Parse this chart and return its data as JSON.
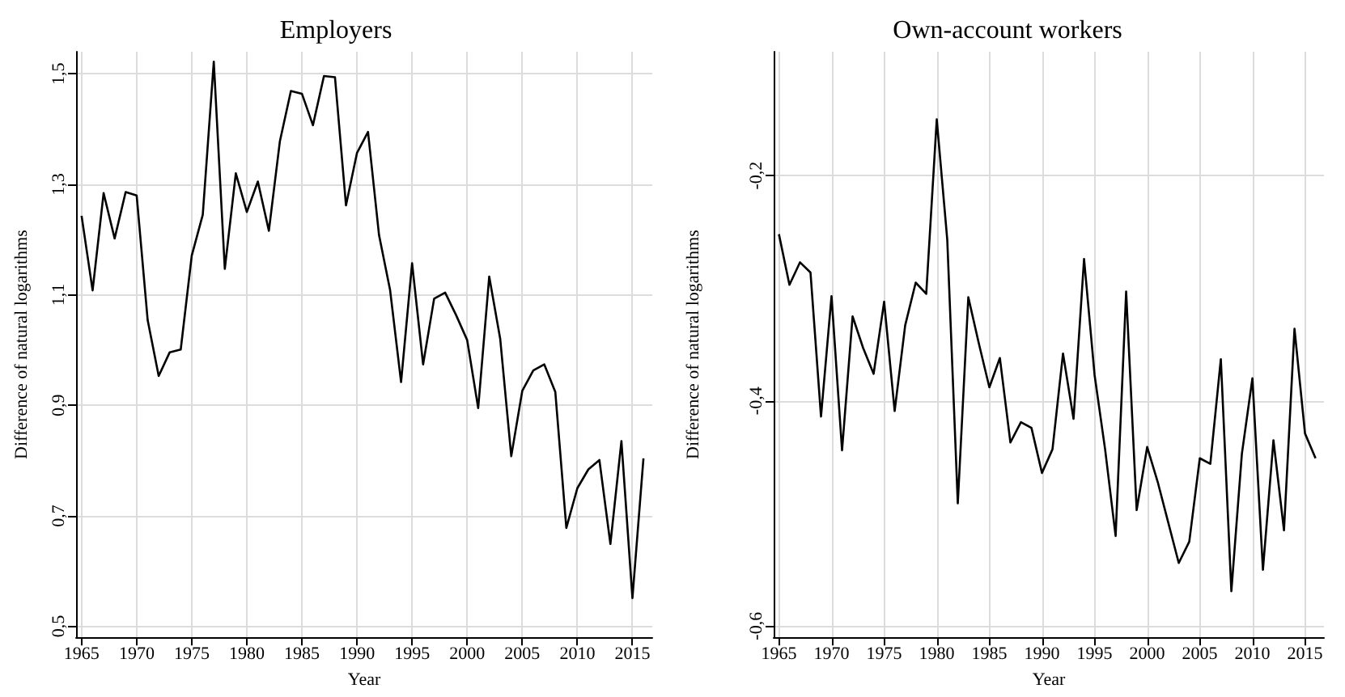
{
  "chart_data": [
    {
      "type": "line",
      "title": "Employers",
      "xlabel": "Year",
      "ylabel": "Difference of natural logarithms",
      "color": "#000000",
      "line_style": "solid",
      "grid": true,
      "x": [
        1965,
        1966,
        1967,
        1968,
        1969,
        1970,
        1971,
        1972,
        1973,
        1974,
        1975,
        1976,
        1977,
        1978,
        1979,
        1980,
        1981,
        1982,
        1983,
        1984,
        1985,
        1986,
        1987,
        1988,
        1989,
        1990,
        1991,
        1992,
        1993,
        1994,
        1995,
        1996,
        1997,
        1998,
        1999,
        2000,
        2001,
        2002,
        2003,
        2004,
        2005,
        2006,
        2007,
        2008,
        2009,
        2010,
        2011,
        2012,
        2013,
        2014,
        2015,
        2016
      ],
      "values": [
        1.243,
        1.108,
        1.284,
        1.202,
        1.286,
        1.28,
        1.054,
        0.953,
        0.996,
        1.001,
        1.171,
        1.245,
        1.522,
        1.147,
        1.32,
        1.25,
        1.305,
        1.216,
        1.378,
        1.469,
        1.464,
        1.407,
        1.496,
        1.494,
        1.262,
        1.357,
        1.395,
        1.208,
        1.109,
        0.942,
        1.157,
        0.974,
        1.093,
        1.104,
        1.063,
        1.018,
        0.895,
        1.133,
        1.02,
        0.808,
        0.926,
        0.963,
        0.974,
        0.924,
        0.678,
        0.75,
        0.784,
        0.801,
        0.649,
        0.835,
        0.551,
        0.804
      ],
      "xlim": [
        1964.5,
        2016.8
      ],
      "xticks": [
        1965,
        1970,
        1975,
        1980,
        1985,
        1990,
        1995,
        2000,
        2005,
        2010,
        2015
      ],
      "ylim": [
        0.48,
        1.54
      ],
      "yticks": [
        {
          "value": 0.5,
          "label": "0,5"
        },
        {
          "value": 0.7,
          "label": "0,7"
        },
        {
          "value": 0.9,
          "label": "0,9"
        },
        {
          "value": 1.1,
          "label": "1,1"
        },
        {
          "value": 1.3,
          "label": "1,3"
        },
        {
          "value": 1.5,
          "label": "1,5"
        }
      ]
    },
    {
      "type": "line",
      "title": "Own-account workers",
      "xlabel": "Year",
      "ylabel": "Difference of natural logarithms",
      "color": "#000000",
      "line_style": "solid",
      "grid": true,
      "x": [
        1965,
        1966,
        1967,
        1968,
        1969,
        1970,
        1971,
        1972,
        1973,
        1974,
        1975,
        1976,
        1977,
        1978,
        1979,
        1980,
        1981,
        1982,
        1983,
        1984,
        1985,
        1986,
        1987,
        1988,
        1989,
        1990,
        1991,
        1992,
        1993,
        1994,
        1995,
        1996,
        1997,
        1998,
        1999,
        2000,
        2001,
        2002,
        2003,
        2004,
        2005,
        2006,
        2007,
        2008,
        2009,
        2010,
        2011,
        2012,
        2013,
        2014,
        2015,
        2016
      ],
      "values": [
        -0.252,
        -0.297,
        -0.277,
        -0.286,
        -0.414,
        -0.307,
        -0.444,
        -0.325,
        -0.353,
        -0.376,
        -0.312,
        -0.409,
        -0.333,
        -0.295,
        -0.305,
        -0.15,
        -0.257,
        -0.491,
        -0.308,
        -0.349,
        -0.388,
        -0.362,
        -0.437,
        -0.419,
        -0.424,
        -0.464,
        -0.443,
        -0.358,
        -0.416,
        -0.274,
        -0.377,
        -0.443,
        -0.52,
        -0.303,
        -0.497,
        -0.441,
        -0.472,
        -0.508,
        -0.544,
        -0.525,
        -0.451,
        -0.456,
        -0.363,
        -0.569,
        -0.447,
        -0.38,
        -0.55,
        -0.435,
        -0.515,
        -0.336,
        -0.429,
        -0.451
      ],
      "xlim": [
        1964.5,
        2016.8
      ],
      "xticks": [
        1965,
        1970,
        1975,
        1980,
        1985,
        1990,
        1995,
        2000,
        2005,
        2010,
        2015
      ],
      "ylim": [
        -0.61,
        -0.09
      ],
      "yticks": [
        {
          "value": -0.6,
          "label": "-0,6"
        },
        {
          "value": -0.4,
          "label": "-0,4"
        },
        {
          "value": -0.2,
          "label": "-0,2"
        }
      ]
    }
  ]
}
